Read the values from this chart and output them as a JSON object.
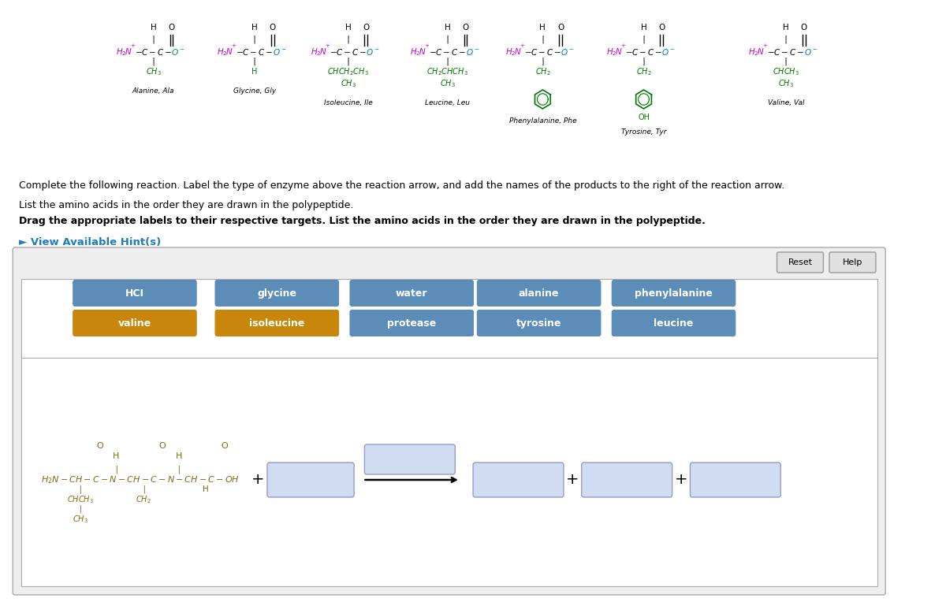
{
  "bg_color": "#ffffff",
  "panel_outer_color": "#d0d0d0",
  "panel_bg": "#f0f0f0",
  "inner_panel_bg": "#ffffff",
  "btn_blue": "#5b8db8",
  "btn_blue_light": "#b8cce4",
  "hint_color": "#1f7bbf",
  "text_color": "#000000",
  "chem_color": "#8B6914",
  "green_color": "#007700",
  "nh_color": "#cc00cc",
  "co_color": "#cc0000",
  "oc_color": "#008888",
  "instructions": [
    "Complete the following reaction. Label the type of enzyme above the reaction arrow, and add the names of the products to the right of the reaction arrow.",
    "List the amino acids in the order they are drawn in the polypeptide.",
    "Drag the appropriate labels to their respective targets. List the amino acids in the order they are drawn in the polypeptide."
  ],
  "hint_text": "► View Available Hint(s)",
  "row1_labels": [
    "HCI",
    "glycine",
    "water",
    "alanine",
    "phenylalanine"
  ],
  "row2_labels": [
    "valine",
    "isoleucine",
    "protease",
    "tyrosine",
    "leucine"
  ],
  "row1_colors": [
    "#5b8db8",
    "#5b8db8",
    "#5b8db8",
    "#5b8db8",
    "#5b8db8"
  ],
  "row2_colors": [
    "#c8860a",
    "#c8860a",
    "#5b8db8",
    "#5b8db8",
    "#5b8db8"
  ]
}
